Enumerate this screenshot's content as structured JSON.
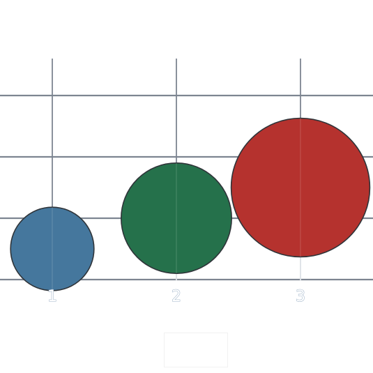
{
  "chart_data": {
    "type": "scatter",
    "title": "",
    "xlabel": "",
    "ylabel": "",
    "x_ticks": [
      "1",
      "2",
      "3"
    ],
    "xlim": [
      0.57,
      3.58
    ],
    "ylim": [
      -0.5,
      3.0
    ],
    "grid": true,
    "legend": "bottom",
    "points": [
      {
        "x": 1,
        "y": 0.5,
        "size": 0.68,
        "color": "#45779d"
      },
      {
        "x": 2,
        "y": 1.0,
        "size": 0.9,
        "color": "#25714b"
      },
      {
        "x": 3,
        "y": 1.5,
        "size": 1.13,
        "color": "#b5322e"
      }
    ],
    "styles": {
      "horizontal_grid_color": "#7d8591",
      "vertical_grid_color": "#ccd1d8",
      "vertical_grid_lower_color": "#dde1e6",
      "bubble_edge_color": "#2f3439"
    }
  }
}
